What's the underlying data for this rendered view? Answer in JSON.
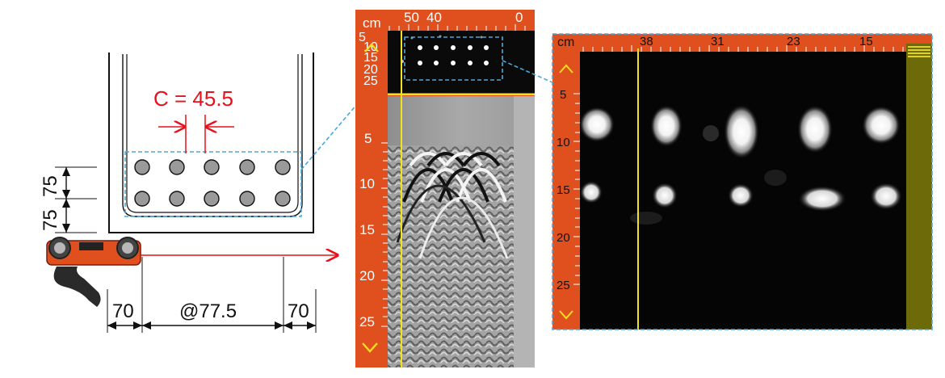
{
  "drawing": {
    "cover_label": "C = 45.5",
    "dim_left_top": "75",
    "dim_left_bottom": "75",
    "dim_bottom_left": "70",
    "dim_bottom_middle": "@77.5",
    "dim_bottom_right": "70",
    "rebar_count_per_row": 5,
    "rebar_rows": 2
  },
  "scan_panel": {
    "unit": "cm",
    "top_ticks": [
      "50",
      "40",
      "0"
    ],
    "overview_depth_ticks": [
      "5",
      "10",
      "15",
      "20",
      "25"
    ],
    "depth_ticks": [
      "5",
      "10",
      "15",
      "20",
      "25"
    ],
    "arrow_up_icon": "chevron-up-icon",
    "arrow_down_icon": "chevron-down-icon"
  },
  "zoom_panel": {
    "unit": "cm",
    "top_ticks": [
      "38",
      "31",
      "23",
      "15"
    ],
    "depth_ticks": [
      "5",
      "10",
      "15",
      "20",
      "25"
    ],
    "menu_icon": "menu-icon"
  },
  "colors": {
    "accent": "#e0501e",
    "dim_red": "#e8101a",
    "dash_blue": "#4aa8dc",
    "cursor_yellow": "#f2e21e",
    "olive": "#6d6a0a",
    "rebar_grey": "#9a9a9a"
  }
}
